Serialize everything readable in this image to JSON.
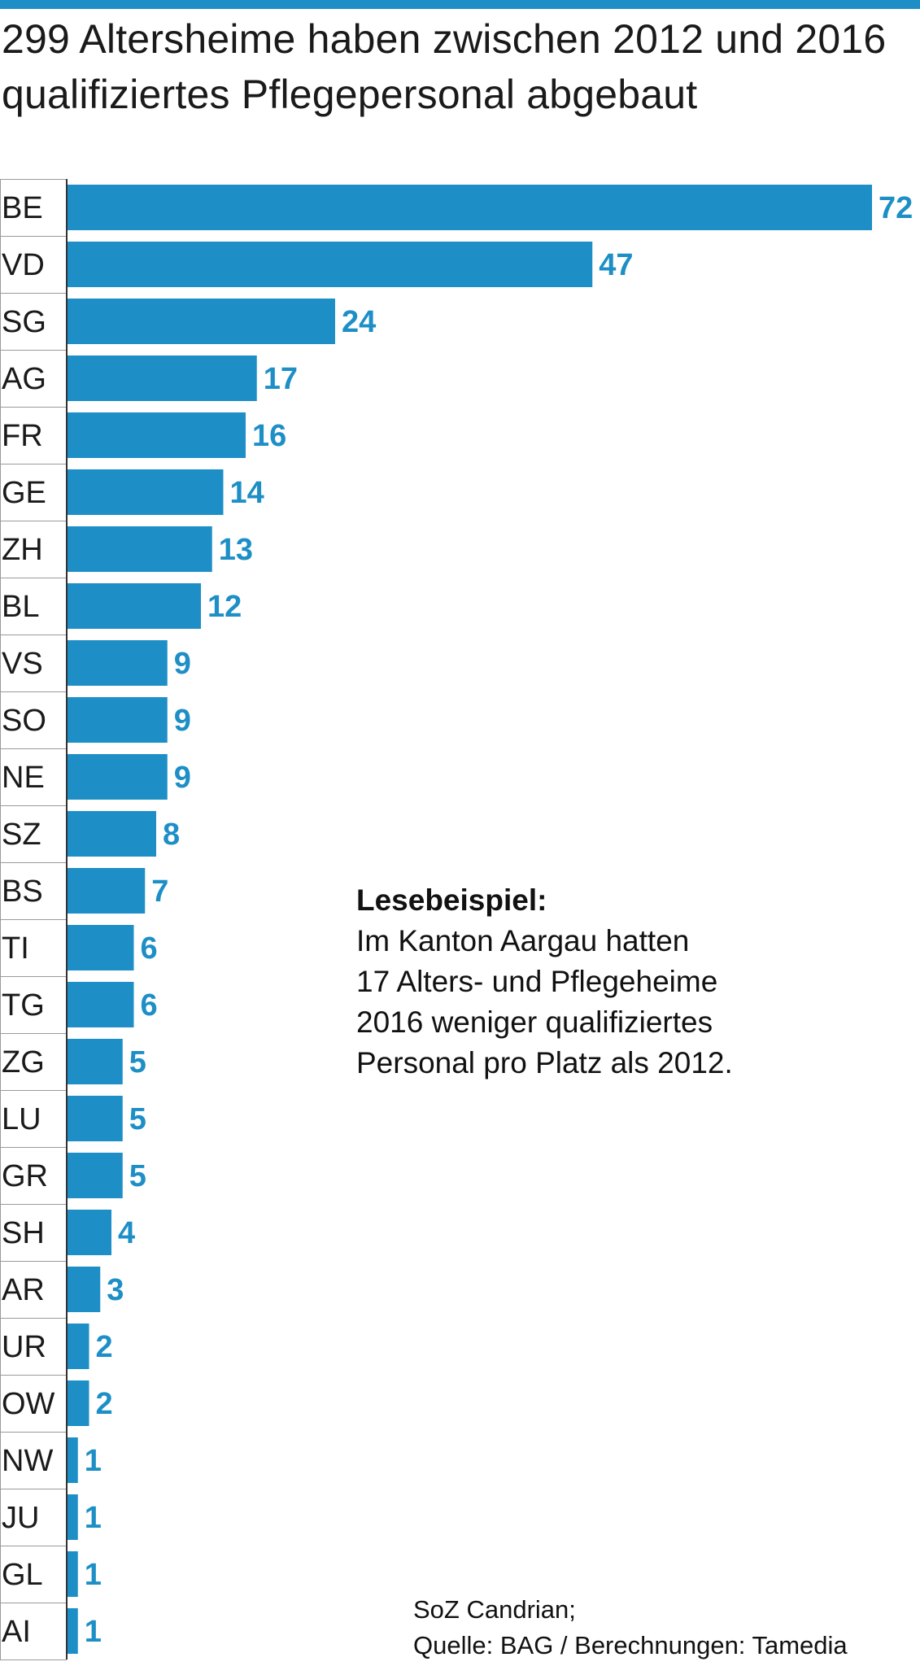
{
  "title": "299 Altersheime haben zwischen 2012 und 2016 qualifiziertes Pflegepersonal abgebaut",
  "note": {
    "title": "Lesebeispiel:",
    "lines": [
      "Im Kanton Aargau hatten",
      "17 Alters- und Pflegeheime",
      "2016 weniger qualifiziertes",
      "Personal pro Platz als 2012."
    ]
  },
  "source": {
    "line1": "SoZ Candrian;",
    "line2": "Quelle:  BAG / Berechnungen: Tamedia"
  },
  "colors": {
    "bar": "#1d8fc6",
    "value_label": "#1d8fc6",
    "accent_bar": "#1d8fc6"
  },
  "chart_data": {
    "type": "bar",
    "orientation": "horizontal",
    "title": "299 Altersheime haben zwischen 2012 und 2016 qualifiziertes Pflegepersonal abgebaut",
    "categories": [
      "BE",
      "VD",
      "SG",
      "AG",
      "FR",
      "GE",
      "ZH",
      "BL",
      "VS",
      "SO",
      "NE",
      "SZ",
      "BS",
      "TI",
      "TG",
      "ZG",
      "LU",
      "GR",
      "SH",
      "AR",
      "UR",
      "OW",
      "NW",
      "JU",
      "GL",
      "AI"
    ],
    "values": [
      72,
      47,
      24,
      17,
      16,
      14,
      13,
      12,
      9,
      9,
      9,
      8,
      7,
      6,
      6,
      5,
      5,
      5,
      4,
      3,
      2,
      2,
      1,
      1,
      1,
      1
    ],
    "xlim": [
      0,
      72
    ],
    "xlabel": "",
    "ylabel": "",
    "grid": false,
    "legend": "none"
  }
}
